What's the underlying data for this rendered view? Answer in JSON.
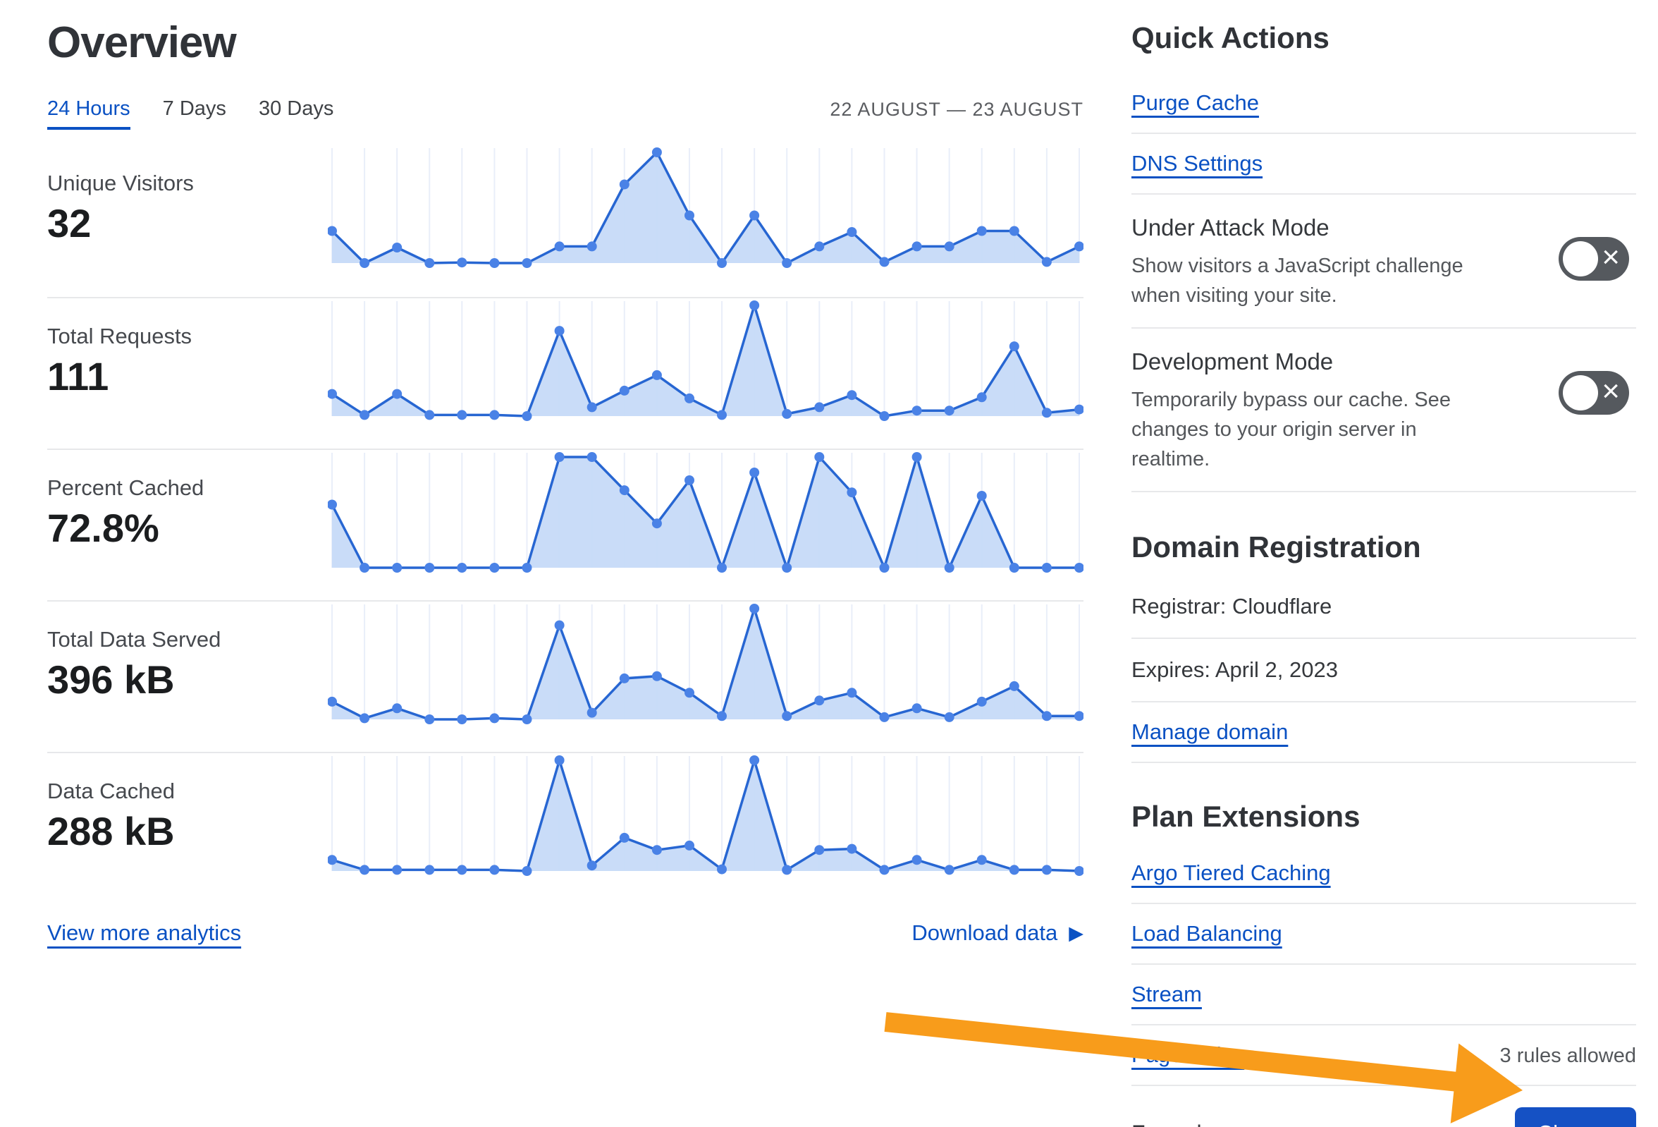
{
  "page_title": "Overview",
  "tabs": [
    {
      "label": "24 Hours",
      "active": true
    },
    {
      "label": "7 Days",
      "active": false
    },
    {
      "label": "30 Days",
      "active": false
    }
  ],
  "date_range": "22 AUGUST — 23 AUGUST",
  "links": {
    "view_more": "View more analytics",
    "download": "Download data",
    "download_icon": "▶"
  },
  "quick_actions": {
    "heading": "Quick Actions",
    "links": [
      {
        "label": "Purge Cache"
      },
      {
        "label": "DNS Settings"
      }
    ],
    "toggles": [
      {
        "title": "Under Attack Mode",
        "description": "Show visitors a JavaScript challenge when visiting your site.",
        "enabled": false,
        "glyph": "×"
      },
      {
        "title": "Development Mode",
        "description": "Temporarily bypass our cache. See changes to your origin server in realtime.",
        "enabled": false,
        "glyph": "×"
      }
    ]
  },
  "domain_registration": {
    "heading": "Domain Registration",
    "registrar": "Registrar: Cloudflare",
    "expires": "Expires: April 2, 2023",
    "manage": "Manage domain"
  },
  "plan_extensions": {
    "heading": "Plan Extensions",
    "links": [
      {
        "label": "Argo Tiered Caching",
        "note": ""
      },
      {
        "label": "Load Balancing",
        "note": ""
      },
      {
        "label": "Stream",
        "note": ""
      },
      {
        "label": "Page Rules",
        "note": "3 rules allowed"
      }
    ]
  },
  "plan": {
    "name": "Free plan",
    "change_label": "Change"
  },
  "colors": {
    "link_blue": "#0a51c3",
    "button_blue": "#1551c4",
    "line_blue": "#2766d2",
    "dot_blue": "#4a82e6",
    "area_fill": "#c6daf8",
    "gridline": "#e9eef9",
    "divider": "#e7e8ea",
    "arrow_orange": "#f89c1b",
    "toggle_gray": "#55595e"
  },
  "chart_data": [
    {
      "type": "area",
      "title": "Unique Visitors",
      "display_value": "32",
      "x_description": "24 hourly samples, 22 August — 23 August (unlabeled sparkline axis)",
      "y_relative_max": 10,
      "values_relative": [
        2.9,
        0,
        1.4,
        0,
        0.05,
        0,
        0,
        1.5,
        1.5,
        7.1,
        10,
        4.3,
        0,
        4.3,
        0,
        1.5,
        2.8,
        0.1,
        1.5,
        1.5,
        2.9,
        2.9,
        0.1,
        1.5
      ]
    },
    {
      "type": "area",
      "title": "Total Requests",
      "display_value": "111",
      "x_description": "24 hourly samples, 22 August — 23 August (unlabeled sparkline axis)",
      "y_relative_max": 10,
      "values_relative": [
        2.0,
        0.1,
        2.0,
        0.1,
        0.1,
        0.1,
        0,
        7.7,
        0.8,
        2.3,
        3.7,
        1.6,
        0.1,
        10,
        0.2,
        0.8,
        1.9,
        0,
        0.5,
        0.5,
        1.7,
        6.3,
        0.3,
        0.6
      ]
    },
    {
      "type": "area",
      "title": "Percent Cached",
      "display_value": "72.8%",
      "x_description": "24 hourly samples, 22 August — 23 August (unlabeled sparkline axis)",
      "y_relative_max": 10,
      "values_relative": [
        5.7,
        0,
        0,
        0,
        0,
        0,
        0,
        10,
        10,
        7.0,
        4.0,
        7.9,
        0,
        8.6,
        0,
        10,
        6.8,
        0,
        10,
        0,
        6.5,
        0,
        0,
        0
      ]
    },
    {
      "type": "area",
      "title": "Total Data Served",
      "display_value": "396 kB",
      "x_description": "24 hourly samples, 22 August — 23 August (unlabeled sparkline axis)",
      "y_relative_max": 10,
      "values_relative": [
        1.6,
        0.1,
        1.0,
        0,
        0,
        0.1,
        0,
        8.5,
        0.6,
        3.7,
        3.9,
        2.4,
        0.3,
        10,
        0.3,
        1.7,
        2.4,
        0.2,
        1.0,
        0.2,
        1.6,
        3.0,
        0.3,
        0.3
      ]
    },
    {
      "type": "area",
      "title": "Data Cached",
      "display_value": "288 kB",
      "x_description": "24 hourly samples, 22 August — 23 August (unlabeled sparkline axis)",
      "y_relative_max": 10,
      "values_relative": [
        1.0,
        0.1,
        0.1,
        0.1,
        0.1,
        0.1,
        0,
        10,
        0.5,
        3.0,
        1.9,
        2.3,
        0.15,
        10,
        0.1,
        1.9,
        2.0,
        0.1,
        1.0,
        0.1,
        1.0,
        0.1,
        0.1,
        0
      ]
    }
  ]
}
